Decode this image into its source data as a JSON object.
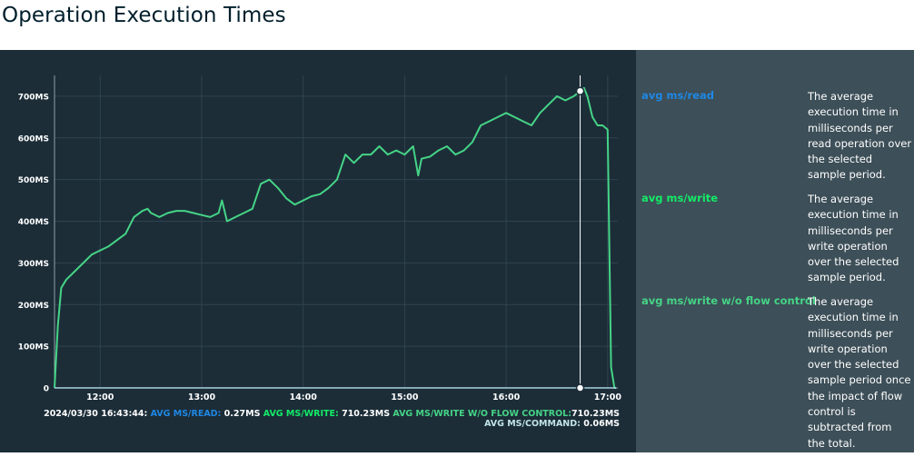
{
  "page": {
    "title": "Operation Execution Times"
  },
  "colors": {
    "read": "#1e88e5",
    "write": "#13ec68",
    "write_wo_flow": "#45d486",
    "command": "#c1e4e8"
  },
  "readout": {
    "timestamp": "2024/03/30 16:43:44:",
    "read_label": "AVG MS/READ:",
    "read_value": "0.27MS",
    "write_label": "AVG MS/WRITE:",
    "write_value": "710.23MS",
    "write_wo_flow_label": "AVG MS/WRITE W/O FLOW CONTROL:",
    "write_wo_flow_value": "710.23MS",
    "command_label": "AVG MS/COMMAND:",
    "command_value": "0.06MS"
  },
  "legend": [
    {
      "name": "avg ms/read",
      "description": "The average execution time in milliseconds per read operation over the selected sample period."
    },
    {
      "name": "avg ms/write",
      "description": "The average execution time in milliseconds per write operation over the selected sample period."
    },
    {
      "name": "avg ms/write w/o flow control",
      "description": "The average execution time in milliseconds per write operation over the selected sample period once the impact of flow control is subtracted from the total."
    }
  ],
  "chart_data": {
    "type": "line",
    "x_tick_labels": [
      "12:00",
      "13:00",
      "14:00",
      "15:00",
      "16:00",
      "17:00"
    ],
    "y_tick_labels": [
      "0",
      "100MS",
      "200MS",
      "300MS",
      "400MS",
      "500MS",
      "600MS",
      "700MS"
    ],
    "xlim": [
      "11:33",
      "17:06"
    ],
    "ylim": [
      0,
      750
    ],
    "crosshair_x": "16:43:44",
    "series": [
      {
        "name": "avg ms/write",
        "x": [
          "11:33",
          "11:35",
          "11:37",
          "11:40",
          "11:45",
          "11:50",
          "11:55",
          "12:00",
          "12:05",
          "12:10",
          "12:15",
          "12:20",
          "12:25",
          "12:28",
          "12:30",
          "12:35",
          "12:40",
          "12:45",
          "12:50",
          "12:55",
          "13:00",
          "13:05",
          "13:10",
          "13:12",
          "13:15",
          "13:20",
          "13:25",
          "13:30",
          "13:35",
          "13:40",
          "13:45",
          "13:50",
          "13:55",
          "14:00",
          "14:05",
          "14:10",
          "14:15",
          "14:20",
          "14:25",
          "14:30",
          "14:35",
          "14:40",
          "14:45",
          "14:50",
          "14:55",
          "15:00",
          "15:05",
          "15:08",
          "15:10",
          "15:15",
          "15:20",
          "15:25",
          "15:30",
          "15:35",
          "15:40",
          "15:45",
          "15:50",
          "15:55",
          "16:00",
          "16:05",
          "16:10",
          "16:15",
          "16:20",
          "16:25",
          "16:30",
          "16:35",
          "16:40",
          "16:43",
          "16:46",
          "16:48",
          "16:51",
          "16:54",
          "16:57",
          "17:00",
          "17:02",
          "17:04",
          "17:05"
        ],
        "values": [
          0,
          150,
          240,
          260,
          280,
          300,
          320,
          330,
          340,
          355,
          370,
          410,
          425,
          430,
          420,
          410,
          420,
          425,
          425,
          420,
          415,
          410,
          420,
          450,
          400,
          410,
          420,
          430,
          490,
          500,
          480,
          455,
          440,
          450,
          460,
          465,
          480,
          500,
          560,
          540,
          560,
          560,
          580,
          560,
          570,
          560,
          580,
          510,
          550,
          555,
          570,
          580,
          560,
          570,
          590,
          630,
          640,
          650,
          660,
          650,
          640,
          630,
          660,
          680,
          700,
          690,
          700,
          710,
          720,
          700,
          650,
          630,
          630,
          620,
          50,
          0,
          0
        ]
      },
      {
        "name": "avg ms/read",
        "x": [
          "11:33",
          "17:05"
        ],
        "values": [
          0.27,
          0.27
        ]
      },
      {
        "name": "avg ms/command",
        "x": [
          "11:33",
          "17:05"
        ],
        "values": [
          0.06,
          0.06
        ]
      }
    ]
  }
}
